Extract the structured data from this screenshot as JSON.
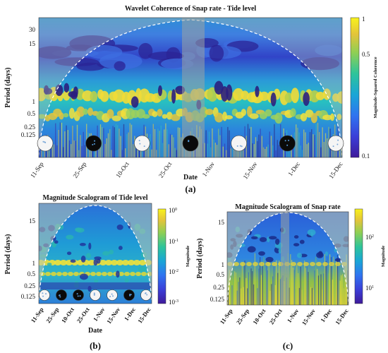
{
  "chart_data": [
    {
      "type": "heatmap",
      "panel_label": "(a)",
      "title": "Wavelet Coherence of Snap rate - Tide level",
      "xlabel": "Date",
      "ylabel": "Period (days)",
      "x_ticks": [
        "11-Sep",
        "25-Sep",
        "10-Oct",
        "25-Oct",
        "1-Nov",
        "15-Nov",
        "1-Dec",
        "15-Dec"
      ],
      "y_ticks": [
        "30",
        "15",
        "1",
        "0.5",
        "0.25",
        "0.125"
      ],
      "colorbar": {
        "label": "Magnitude-Squared Coherence",
        "ticks": [
          "1",
          "0.5",
          "0.1"
        ],
        "range": [
          0.1,
          1
        ]
      },
      "moon_phases": [
        "full",
        "new",
        "full",
        "new",
        "full",
        "new",
        "full"
      ],
      "bands_days": [
        1,
        0.5
      ]
    },
    {
      "type": "heatmap",
      "panel_label": "(b)",
      "title": "Magnitude Scalogram of Tide level",
      "xlabel": "Date",
      "ylabel": "Period (days)",
      "x_ticks": [
        "11-Sep",
        "25-Sep",
        "10-Oct",
        "25-Oct",
        "1-Nov",
        "15-Nov",
        "1-Dec",
        "15-Dec"
      ],
      "y_ticks": [
        "15",
        "1",
        "0.5",
        "0.25",
        "0.125"
      ],
      "colorbar": {
        "label": "Magnitude",
        "ticks": [
          "10^0",
          "10^-1",
          "10^-2",
          "10^-3"
        ],
        "range": [
          0.001,
          1
        ]
      },
      "moon_phases": [
        "full",
        "new",
        "new",
        "full",
        "full",
        "new",
        "full"
      ],
      "bands_days": [
        1,
        0.5
      ]
    },
    {
      "type": "heatmap",
      "panel_label": "(c)",
      "title": "Magnitude Scalogram of Snap rate",
      "xlabel": "Date",
      "ylabel": "Period (days)",
      "x_ticks": [
        "11-Sep",
        "25-Sep",
        "10-Oct",
        "25-Oct",
        "1-Nov",
        "15-Nov",
        "1-Dec",
        "15-Dec"
      ],
      "y_ticks": [
        "15",
        "1",
        "0.5",
        "0.25",
        "0.125"
      ],
      "colorbar": {
        "label": "Magnitude",
        "ticks": [
          "10^2",
          "10^1"
        ],
        "range": [
          5,
          300
        ]
      }
    }
  ]
}
